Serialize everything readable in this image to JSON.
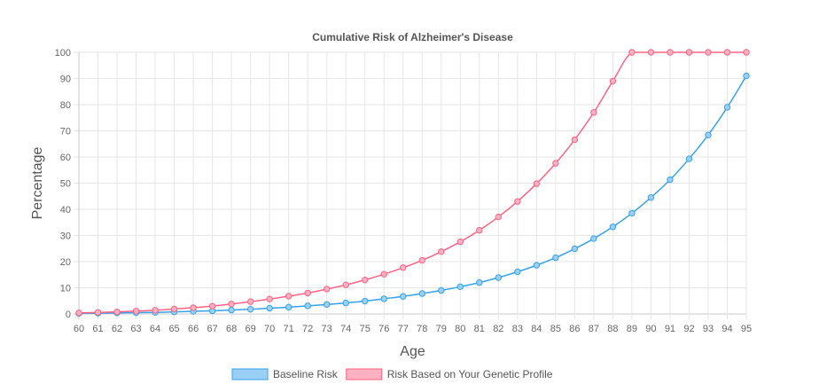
{
  "chart_data": {
    "type": "line",
    "title": "Cumulative Risk of Alzheimer's Disease",
    "xlabel": "Age",
    "ylabel": "Percentage",
    "categories": [
      "60",
      "61",
      "62",
      "63",
      "64",
      "65",
      "66",
      "67",
      "68",
      "69",
      "70",
      "71",
      "72",
      "73",
      "74",
      "75",
      "76",
      "77",
      "78",
      "79",
      "80",
      "81",
      "82",
      "83",
      "84",
      "85",
      "86",
      "87",
      "88",
      "89",
      "90",
      "91",
      "92",
      "93",
      "94",
      "95"
    ],
    "ylim": [
      0,
      100
    ],
    "yticks": [
      0,
      10,
      20,
      30,
      40,
      50,
      60,
      70,
      80,
      90,
      100
    ],
    "grid": true,
    "legend_position": "bottom",
    "series": [
      {
        "name": "Baseline Risk",
        "color": "#36a2eb",
        "fill": "#9ad0f5",
        "values": [
          0.2,
          0.3,
          0.4,
          0.5,
          0.6,
          0.8,
          1.0,
          1.2,
          1.5,
          1.8,
          2.2,
          2.6,
          3.1,
          3.6,
          4.2,
          4.9,
          5.8,
          6.7,
          7.8,
          9.0,
          10.4,
          12.0,
          13.9,
          16.1,
          18.6,
          21.5,
          24.9,
          28.8,
          33.3,
          38.5,
          44.5,
          51.3,
          59.3,
          68.4,
          79.0,
          91.0
        ]
      },
      {
        "name": "Risk Based on Your Genetic Profile",
        "color": "#ff6384",
        "fill": "#ffb1c1",
        "values": [
          0.4,
          0.6,
          0.8,
          1.1,
          1.4,
          1.9,
          2.4,
          3.0,
          3.8,
          4.7,
          5.7,
          6.8,
          8.0,
          9.5,
          11.1,
          13.0,
          15.2,
          17.7,
          20.5,
          23.8,
          27.6,
          32.0,
          37.1,
          43.0,
          49.8,
          57.6,
          66.6,
          77.0,
          89.0,
          100,
          100,
          100,
          100,
          100,
          100,
          100
        ]
      }
    ]
  }
}
